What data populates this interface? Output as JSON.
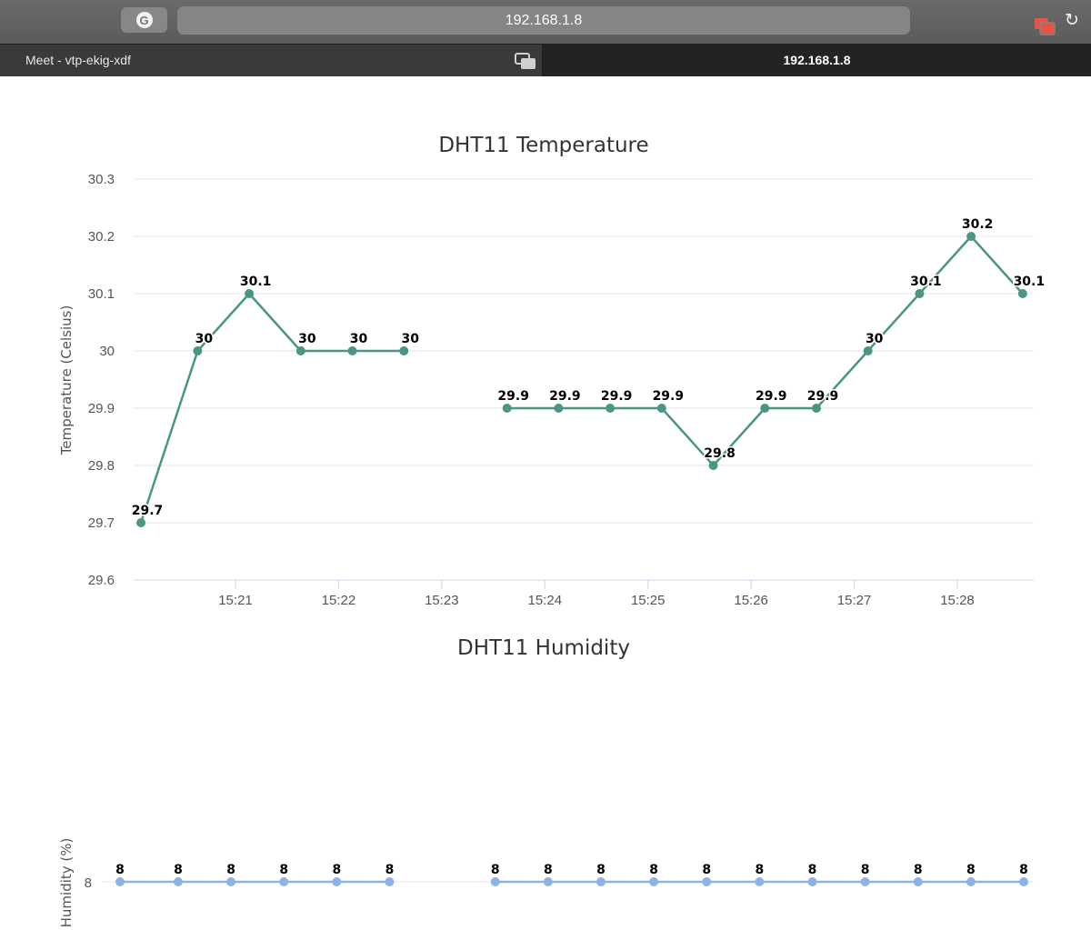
{
  "browser": {
    "address": "192.168.1.8",
    "tabs": [
      {
        "label": "Meet - vtp-ekig-xdf",
        "active": false
      },
      {
        "label": "192.168.1.8",
        "active": true
      }
    ]
  },
  "chart_data": [
    {
      "type": "line",
      "title": "DHT11 Temperature",
      "ylabel": "Temperature (Celsius)",
      "xlabel": "",
      "ylim": [
        29.6,
        30.3
      ],
      "yticks": [
        29.6,
        29.7,
        29.8,
        29.9,
        30,
        30.1,
        30.2,
        30.3
      ],
      "xticks": [
        "15:21",
        "15:22",
        "15:23",
        "15:24",
        "15:25",
        "15:26",
        "15:27",
        "15:28"
      ],
      "color": "#4a9584",
      "grid": true,
      "data_labels": true,
      "series": [
        {
          "points": [
            {
              "x": "15:20:05",
              "y": 29.7
            },
            {
              "x": "15:20:38",
              "y": 30
            },
            {
              "x": "15:21:08",
              "y": 30.1
            },
            {
              "x": "15:21:38",
              "y": 30
            },
            {
              "x": "15:22:08",
              "y": 30
            },
            {
              "x": "15:22:38",
              "y": 30
            },
            {
              "x": "15:23:38",
              "y": 29.9
            },
            {
              "x": "15:24:08",
              "y": 29.9
            },
            {
              "x": "15:24:38",
              "y": 29.9
            },
            {
              "x": "15:25:08",
              "y": 29.9
            },
            {
              "x": "15:25:38",
              "y": 29.8
            },
            {
              "x": "15:26:08",
              "y": 29.9
            },
            {
              "x": "15:26:38",
              "y": 29.9
            },
            {
              "x": "15:27:08",
              "y": 30
            },
            {
              "x": "15:27:38",
              "y": 30.1
            },
            {
              "x": "15:28:08",
              "y": 30.2
            },
            {
              "x": "15:28:38",
              "y": 30.1
            }
          ]
        }
      ]
    },
    {
      "type": "line",
      "title": "DHT11 Humidity",
      "ylabel": "Humidity (%)",
      "xlabel": "",
      "yticks": [
        8
      ],
      "color": "#8cb3e6",
      "grid": true,
      "data_labels": true,
      "series": [
        {
          "points": [
            {
              "x": "15:20:05",
              "y": 8
            },
            {
              "x": "15:20:38",
              "y": 8
            },
            {
              "x": "15:21:08",
              "y": 8
            },
            {
              "x": "15:21:38",
              "y": 8
            },
            {
              "x": "15:22:08",
              "y": 8
            },
            {
              "x": "15:22:38",
              "y": 8
            },
            {
              "x": "15:23:38",
              "y": 8
            },
            {
              "x": "15:24:08",
              "y": 8
            },
            {
              "x": "15:24:38",
              "y": 8
            },
            {
              "x": "15:25:08",
              "y": 8
            },
            {
              "x": "15:25:38",
              "y": 8
            },
            {
              "x": "15:26:08",
              "y": 8
            },
            {
              "x": "15:26:38",
              "y": 8
            },
            {
              "x": "15:27:08",
              "y": 8
            },
            {
              "x": "15:27:38",
              "y": 8
            },
            {
              "x": "15:28:08",
              "y": 8
            },
            {
              "x": "15:28:38",
              "y": 8
            }
          ]
        }
      ]
    }
  ]
}
